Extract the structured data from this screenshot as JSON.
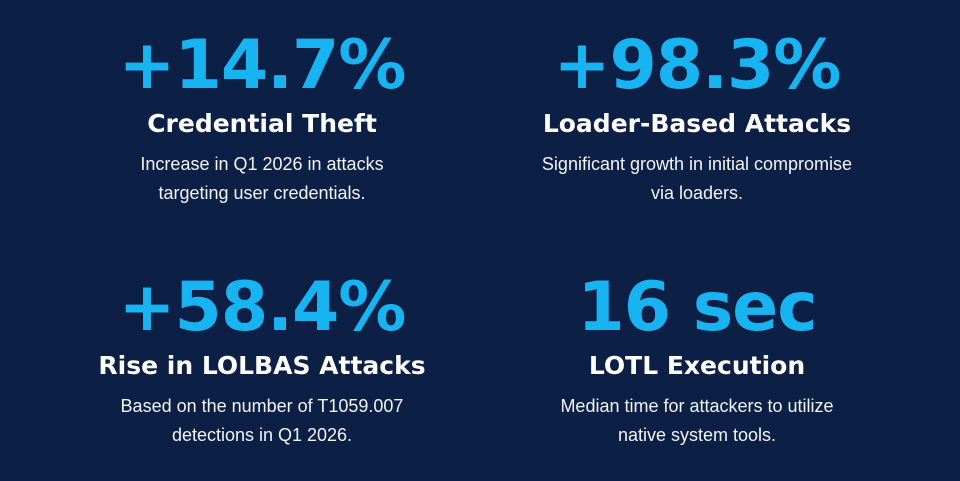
{
  "colors": {
    "background": "#0c1f45",
    "accent": "#18b4f2",
    "text": "#ffffff"
  },
  "stats": [
    {
      "value": "+14.7%",
      "title": "Credential Theft",
      "desc_line1": "Increase in Q1 2026 in attacks",
      "desc_line2": "targeting user credentials."
    },
    {
      "value": "+98.3%",
      "title": "Loader-Based Attacks",
      "desc_line1": "Significant growth in initial compromise",
      "desc_line2": "via loaders."
    },
    {
      "value": "+58.4%",
      "title": "Rise in LOLBAS Attacks",
      "desc_line1": "Based on the number of T1059.007",
      "desc_line2": "detections in Q1 2026."
    },
    {
      "value": "16 sec",
      "title": "LOTL Execution",
      "desc_line1": "Median time for attackers to utilize",
      "desc_line2": "native system tools."
    }
  ]
}
